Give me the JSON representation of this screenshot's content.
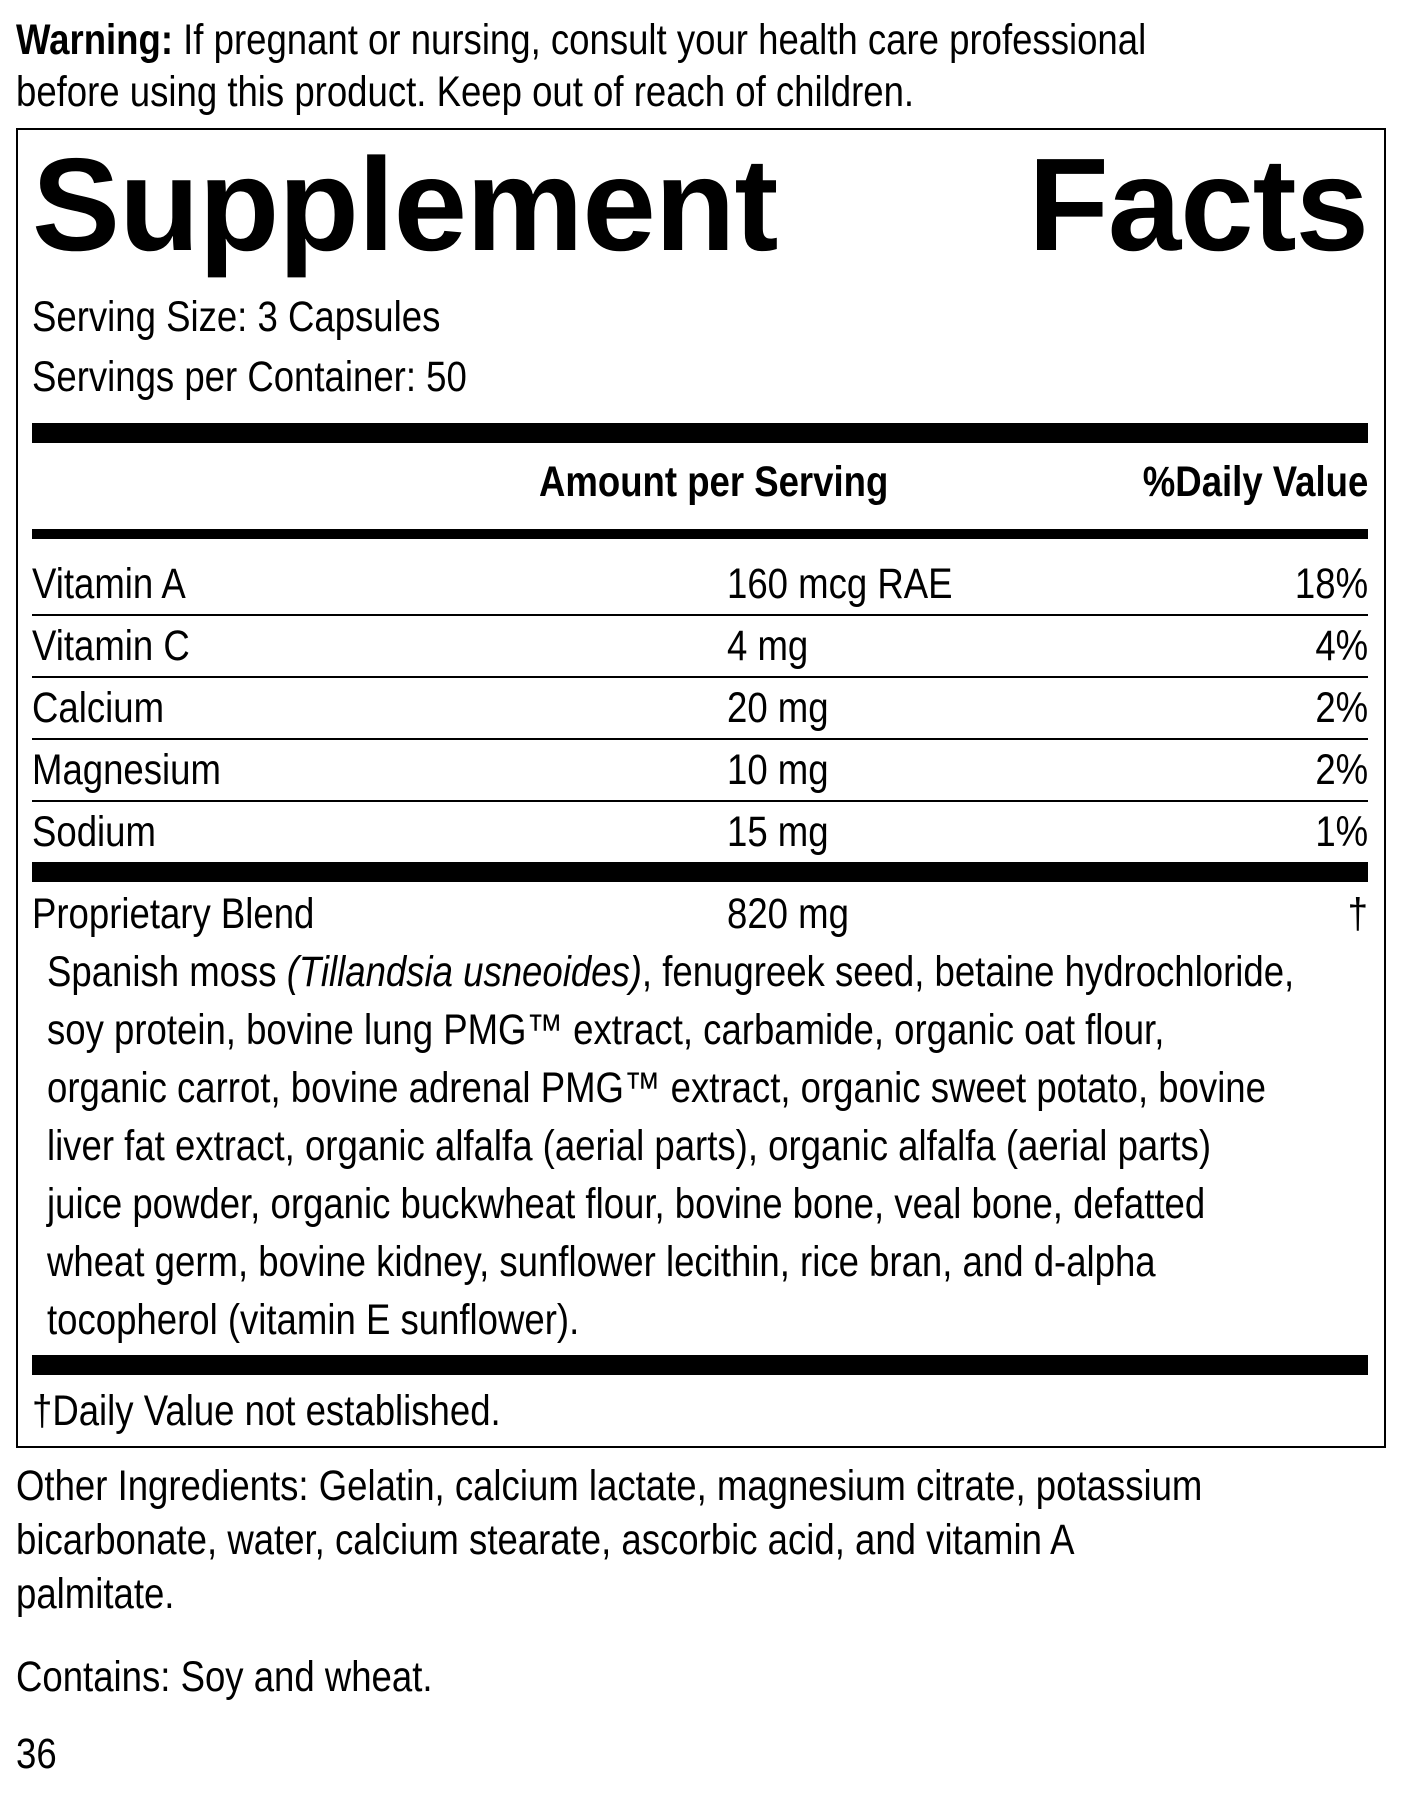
{
  "warning": {
    "label": "Warning:",
    "line1": " If pregnant or nursing, consult your health care professional",
    "line2": "before using this product. Keep out of reach of children."
  },
  "facts": {
    "title_word1": "Supplement",
    "title_word2": "Facts",
    "serving_size": "Serving Size: 3 Capsules",
    "servings_per_container": "Servings per Container: 50",
    "header_amount": "Amount per Serving",
    "header_dv": "%Daily Value",
    "rows": [
      {
        "name": "Vitamin A",
        "amount": "160 mcg RAE",
        "dv": "18%"
      },
      {
        "name": "Vitamin C",
        "amount": "4 mg",
        "dv": "4%"
      },
      {
        "name": "Calcium",
        "amount": "20 mg",
        "dv": "2%"
      },
      {
        "name": "Magnesium",
        "amount": "10 mg",
        "dv": "2%"
      },
      {
        "name": "Sodium",
        "amount": "15 mg",
        "dv": "1%"
      }
    ],
    "blend": {
      "name": "Proprietary Blend",
      "amount": "820 mg",
      "dv": "†",
      "first_prefix": "Spanish moss ",
      "first_italic": "(Tillandsia usneoides)",
      "first_suffix": ", fenugreek seed, betaine hydrochloride,",
      "lines": [
        "soy protein, bovine lung PMG™ extract, carbamide, organic oat flour,",
        "organic carrot, bovine adrenal PMG™ extract, organic sweet potato, bovine",
        "liver fat extract, organic alfalfa (aerial parts), organic alfalfa (aerial parts)",
        "juice powder, organic buckwheat flour, bovine bone, veal bone, defatted",
        "wheat germ, bovine kidney, sunflower lecithin, rice bran, and d-alpha",
        "tocopherol (vitamin E sunflower)."
      ]
    },
    "footnote": "†Daily Value not established."
  },
  "other_ingredients": [
    "Other Ingredients: Gelatin, calcium lactate, magnesium citrate, potassium",
    "bicarbonate, water, calcium stearate, ascorbic acid, and vitamin A",
    "palmitate."
  ],
  "contains": "Contains: Soy and wheat.",
  "page_number": "36"
}
